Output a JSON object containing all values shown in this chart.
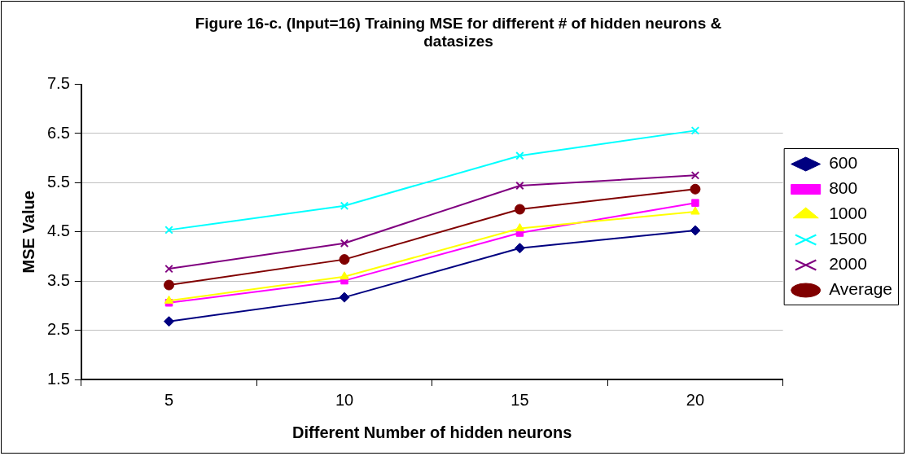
{
  "chart_data": {
    "type": "line",
    "title": "Figure 16-c. (Input=16) Training MSE for different # of hidden neurons & datasizes",
    "xlabel": "Different Number of hidden neurons",
    "ylabel": "MSE Value",
    "categories": [
      "5",
      "10",
      "15",
      "20"
    ],
    "series": [
      {
        "name": "600",
        "color": "#000080",
        "marker": "diamond",
        "values": [
          2.68,
          3.17,
          4.17,
          4.53
        ]
      },
      {
        "name": "800",
        "color": "#ff00ff",
        "marker": "square",
        "values": [
          3.06,
          3.51,
          4.48,
          5.09
        ]
      },
      {
        "name": "1000",
        "color": "#ffff00",
        "marker": "triangle",
        "values": [
          3.1,
          3.59,
          4.57,
          4.91
        ]
      },
      {
        "name": "1500",
        "color": "#00ffff",
        "marker": "cross",
        "values": [
          4.54,
          5.03,
          6.05,
          6.56
        ]
      },
      {
        "name": "2000",
        "color": "#800080",
        "marker": "cross",
        "values": [
          3.75,
          4.27,
          5.44,
          5.65
        ]
      },
      {
        "name": "Average",
        "color": "#800000",
        "marker": "circle",
        "values": [
          3.42,
          3.94,
          4.96,
          5.37
        ]
      }
    ],
    "ylim": [
      1.5,
      7.5
    ],
    "yticks": [
      1.5,
      2.5,
      3.5,
      4.5,
      5.5,
      6.5,
      7.5
    ],
    "grid": "y",
    "legend": "right",
    "line_style": "solid"
  }
}
